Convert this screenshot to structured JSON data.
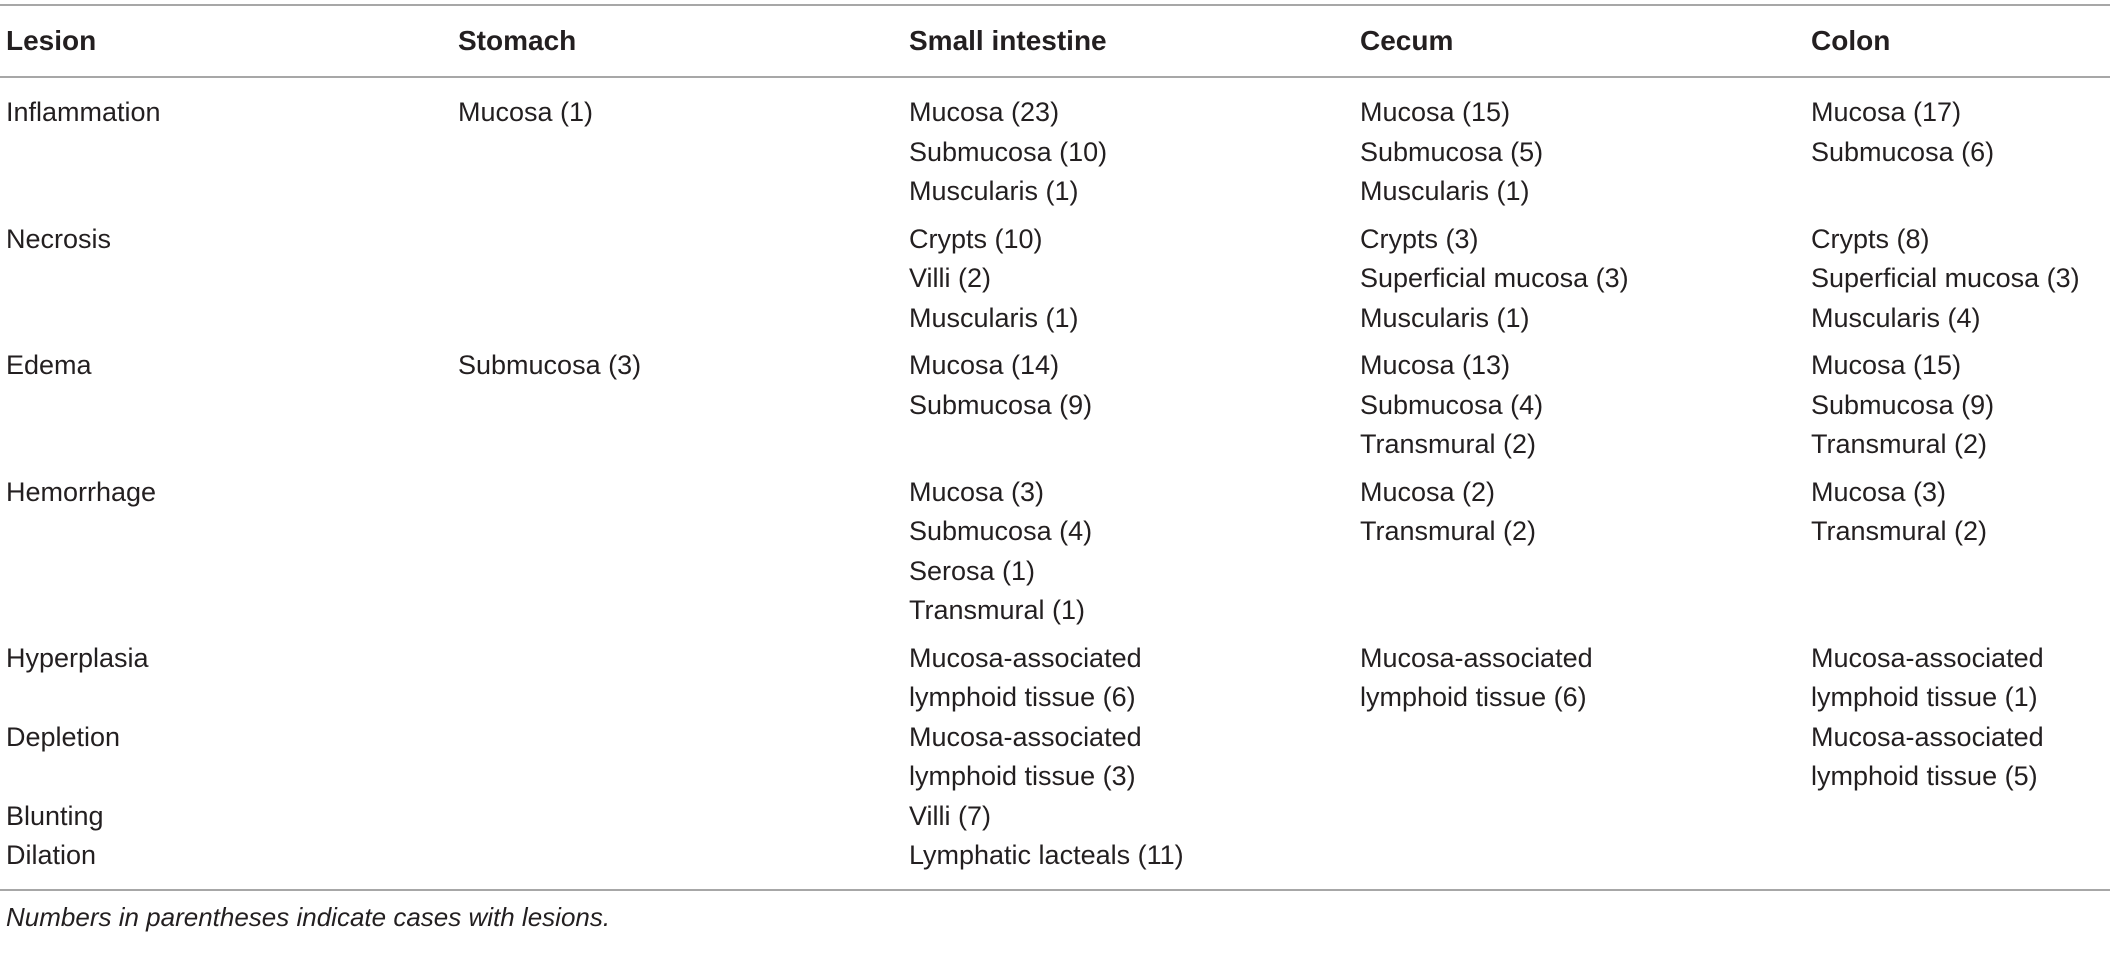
{
  "table": {
    "headers": [
      "Lesion",
      "Stomach",
      "Small intestine",
      "Cecum",
      "Colon"
    ],
    "rows": [
      {
        "lesion": "Inflammation",
        "stomach": [
          "Mucosa (1)"
        ],
        "small_intestine": [
          "Mucosa (23)",
          "Submucosa (10)",
          "Muscularis (1)"
        ],
        "cecum": [
          "Mucosa (15)",
          "Submucosa (5)",
          "Muscularis (1)"
        ],
        "colon": [
          "Mucosa (17)",
          "Submucosa (6)"
        ]
      },
      {
        "lesion": "Necrosis",
        "stomach": [],
        "small_intestine": [
          "Crypts (10)",
          "Villi (2)",
          "Muscularis (1)"
        ],
        "cecum": [
          "Crypts (3)",
          "Superficial mucosa (3)",
          "Muscularis (1)"
        ],
        "colon": [
          "Crypts (8)",
          "Superficial mucosa (3)",
          "Muscularis (4)"
        ]
      },
      {
        "lesion": "Edema",
        "stomach": [
          "Submucosa (3)"
        ],
        "small_intestine": [
          "Mucosa (14)",
          "Submucosa (9)"
        ],
        "cecum": [
          "Mucosa (13)",
          "Submucosa (4)",
          "Transmural (2)"
        ],
        "colon": [
          "Mucosa (15)",
          "Submucosa (9)",
          "Transmural (2)"
        ]
      },
      {
        "lesion": "Hemorrhage",
        "stomach": [],
        "small_intestine": [
          "Mucosa (3)",
          "Submucosa (4)",
          "Serosa (1)",
          "Transmural (1)"
        ],
        "cecum": [
          "Mucosa (2)",
          "Transmural (2)"
        ],
        "colon": [
          "Mucosa (3)",
          "Transmural (2)"
        ]
      },
      {
        "lesion": "Hyperplasia",
        "stomach": [],
        "small_intestine": [
          "Mucosa-associated",
          "lymphoid tissue (6)"
        ],
        "cecum": [
          "Mucosa-associated",
          "lymphoid tissue (6)"
        ],
        "colon": [
          "Mucosa-associated",
          "lymphoid tissue (1)"
        ]
      },
      {
        "lesion": "Depletion",
        "stomach": [],
        "small_intestine": [
          "Mucosa-associated",
          "lymphoid tissue (3)"
        ],
        "cecum": [],
        "colon": [
          "Mucosa-associated",
          "lymphoid tissue (5)"
        ]
      },
      {
        "lesion": "Blunting",
        "stomach": [],
        "small_intestine": [
          "Villi (7)"
        ],
        "cecum": [],
        "colon": []
      },
      {
        "lesion": "Dilation",
        "stomach": [],
        "small_intestine": [
          "Lymphatic lacteals (11)"
        ],
        "cecum": [],
        "colon": []
      }
    ]
  },
  "footnote": "Numbers in parentheses indicate cases with lesions."
}
